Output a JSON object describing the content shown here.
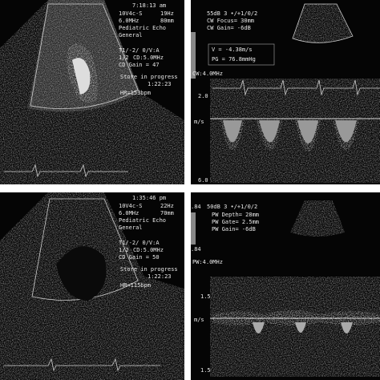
{
  "panels": [
    {
      "time": "7:18:13 am",
      "probe": "10V4c-S",
      "frame_rate": "19Hz",
      "freq": "6.0MHz",
      "depth": "80mm",
      "preset": "Pediatric Echo",
      "preset_sub": "General",
      "settings": "T1/-2/ 0/V:A",
      "ratio": "1/2",
      "cd_freq": "CD:5.0MHz",
      "cd_gain": "CD Gain = 47",
      "status": "Store in progress",
      "clock": "1:22:23",
      "hr": "HR=153bpm"
    },
    {
      "gain": "55dB 3 •/+1/0/2",
      "focus": "CW Focus= 30mm",
      "cw_gain": "CW Gain= -6dB",
      "velocity": "V = -4.38m/s",
      "gradient": "PG = 76.8mmHg",
      "mode": "CW:4.0MHz",
      "scale_top": "2.0",
      "unit": "m/s",
      "scale_bottom": "6.0"
    },
    {
      "time": "1:35:46 pm",
      "probe": "10V4c-S",
      "frame_rate": "22Hz",
      "freq": "6.0MHz",
      "depth": "70mm",
      "preset": "Pediatric Echo",
      "preset_sub": "General",
      "settings": "T1/-2/ 0/V:A",
      "ratio": "1/2",
      "cd_freq": "CD:5.0MHz",
      "cd_gain": "CD Gain = 50",
      "status": "Store in progress",
      "clock": "1:22:23",
      "hr": "HR=115bpm"
    },
    {
      "bar_top": ".84",
      "gain": "50dB 3 •/+1/0/2",
      "pw_depth": "PW Depth= 28mm",
      "pw_gate": "PW Gate= 2.5mm",
      "pw_gain": "PW Gain= -6dB",
      "bar_bottom": ".84",
      "mode": "PW:4.0MHz",
      "scale_top": "1.5",
      "unit": "m/s",
      "scale_bottom": "1.5"
    }
  ]
}
